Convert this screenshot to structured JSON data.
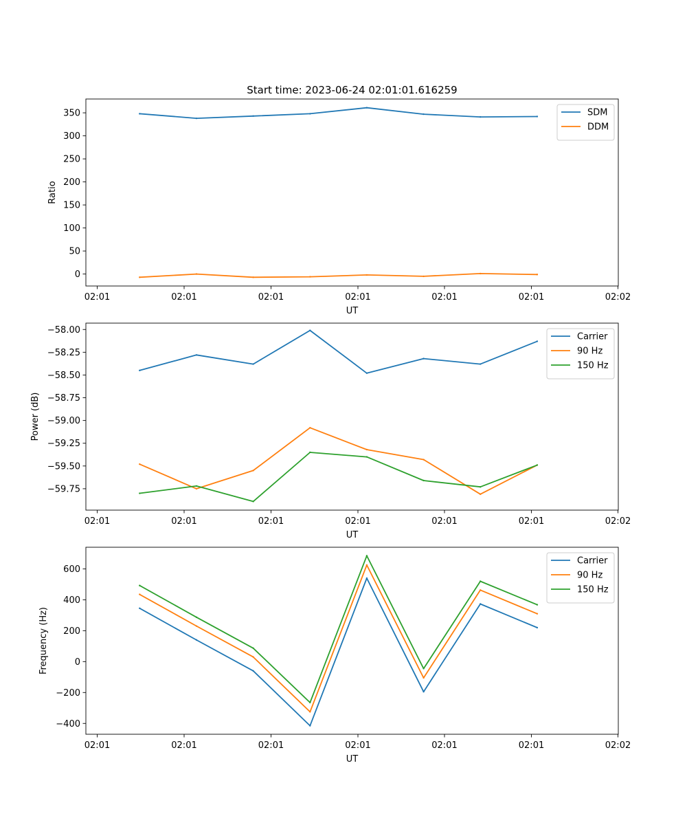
{
  "figure_title": "Start time: 2023-06-24 02:01:01.616259",
  "colors": {
    "blue": "#1f77b4",
    "orange": "#ff7f0e",
    "green": "#2ca02c"
  },
  "chart_data": [
    {
      "type": "line",
      "ylabel": "Ratio",
      "xlabel": "UT",
      "xticks": [
        "02:01",
        "02:01",
        "02:01",
        "02:01",
        "02:01",
        "02:01",
        "02:02"
      ],
      "yticks": [
        "0",
        "50",
        "100",
        "150",
        "200",
        "250",
        "300",
        "350"
      ],
      "ytick_values": [
        0,
        50,
        100,
        150,
        200,
        250,
        300,
        350
      ],
      "ylim": [
        -26,
        380
      ],
      "legend_loc": "upper right",
      "series": [
        {
          "name": "SDM",
          "color": "#1f77b4",
          "values": [
            348,
            338,
            343,
            348,
            361,
            347,
            341,
            342
          ]
        },
        {
          "name": "DDM",
          "color": "#ff7f0e",
          "values": [
            -7,
            0,
            -7,
            -6,
            -2,
            -5,
            1,
            -1
          ]
        }
      ]
    },
    {
      "type": "line",
      "ylabel": "Power (dB)",
      "xlabel": "UT",
      "xticks": [
        "02:01",
        "02:01",
        "02:01",
        "02:01",
        "02:01",
        "02:01",
        "02:02"
      ],
      "yticks": [
        "−58.00",
        "−58.25",
        "−58.50",
        "−58.75",
        "−59.00",
        "−59.25",
        "−59.50",
        "−59.75"
      ],
      "ytick_values": [
        -58.0,
        -58.25,
        -58.5,
        -58.75,
        -59.0,
        -59.25,
        -59.5,
        -59.75
      ],
      "ylim": [
        -59.985,
        -57.93
      ],
      "legend_loc": "upper right",
      "series": [
        {
          "name": "Carrier",
          "color": "#1f77b4",
          "values": [
            -58.45,
            -58.28,
            -58.38,
            -58.01,
            -58.48,
            -58.32,
            -58.38,
            -58.13
          ]
        },
        {
          "name": "90 Hz",
          "color": "#ff7f0e",
          "values": [
            -59.48,
            -59.75,
            -59.55,
            -59.08,
            -59.32,
            -59.43,
            -59.81,
            -59.49
          ]
        },
        {
          "name": "150 Hz",
          "color": "#2ca02c",
          "values": [
            -59.8,
            -59.72,
            -59.89,
            -59.35,
            -59.4,
            -59.66,
            -59.73,
            -59.49
          ]
        }
      ]
    },
    {
      "type": "line",
      "ylabel": "Frequency (Hz)",
      "xlabel": "UT",
      "xticks": [
        "02:01",
        "02:01",
        "02:01",
        "02:01",
        "02:01",
        "02:01",
        "02:02"
      ],
      "yticks": [
        "−400",
        "−200",
        "0",
        "200",
        "400",
        "600"
      ],
      "ytick_values": [
        -400,
        -200,
        0,
        200,
        400,
        600
      ],
      "ylim": [
        -470,
        740
      ],
      "legend_loc": "upper right",
      "series": [
        {
          "name": "Carrier",
          "color": "#1f77b4",
          "values": [
            345,
            140,
            -60,
            -415,
            540,
            -195,
            373,
            220
          ]
        },
        {
          "name": "90 Hz",
          "color": "#ff7f0e",
          "values": [
            435,
            230,
            30,
            -325,
            625,
            -105,
            463,
            310
          ]
        },
        {
          "name": "150 Hz",
          "color": "#2ca02c",
          "values": [
            492,
            287,
            87,
            -265,
            685,
            -45,
            520,
            368
          ]
        }
      ]
    }
  ]
}
